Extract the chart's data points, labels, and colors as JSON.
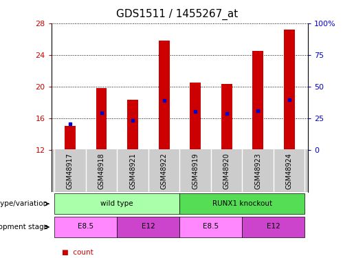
{
  "title": "GDS1511 / 1455267_at",
  "samples": [
    "GSM48917",
    "GSM48918",
    "GSM48921",
    "GSM48922",
    "GSM48919",
    "GSM48920",
    "GSM48923",
    "GSM48924"
  ],
  "counts": [
    15.0,
    19.8,
    18.3,
    25.8,
    20.5,
    20.3,
    24.5,
    27.2
  ],
  "percentile_ranks_left": [
    15.3,
    16.7,
    15.7,
    18.2,
    16.8,
    16.6,
    16.9,
    18.3
  ],
  "ylim_left": [
    12,
    28
  ],
  "ylim_right": [
    0,
    100
  ],
  "yticks_left": [
    12,
    16,
    20,
    24,
    28
  ],
  "yticks_right": [
    0,
    25,
    50,
    75,
    100
  ],
  "ytick_labels_right": [
    "0",
    "25",
    "50",
    "75",
    "100%"
  ],
  "bar_color": "#cc0000",
  "dot_color": "#0000cc",
  "bar_bottom": 12,
  "genotype_groups": [
    {
      "label": "wild type",
      "start": 0,
      "end": 4,
      "color": "#aaffaa"
    },
    {
      "label": "RUNX1 knockout",
      "start": 4,
      "end": 8,
      "color": "#55dd55"
    }
  ],
  "dev_stage_groups": [
    {
      "label": "E8.5",
      "start": 0,
      "end": 2,
      "color": "#ff88ff"
    },
    {
      "label": "E12",
      "start": 2,
      "end": 4,
      "color": "#cc44cc"
    },
    {
      "label": "E8.5",
      "start": 4,
      "end": 6,
      "color": "#ff88ff"
    },
    {
      "label": "E12",
      "start": 6,
      "end": 8,
      "color": "#cc44cc"
    }
  ],
  "left_tick_color": "#cc0000",
  "right_tick_color": "#0000cc",
  "sample_bg": "#cccccc",
  "title_fontsize": 11,
  "tick_fontsize": 8,
  "sample_fontsize": 7,
  "annot_fontsize": 7.5,
  "legend_fontsize": 7.5
}
